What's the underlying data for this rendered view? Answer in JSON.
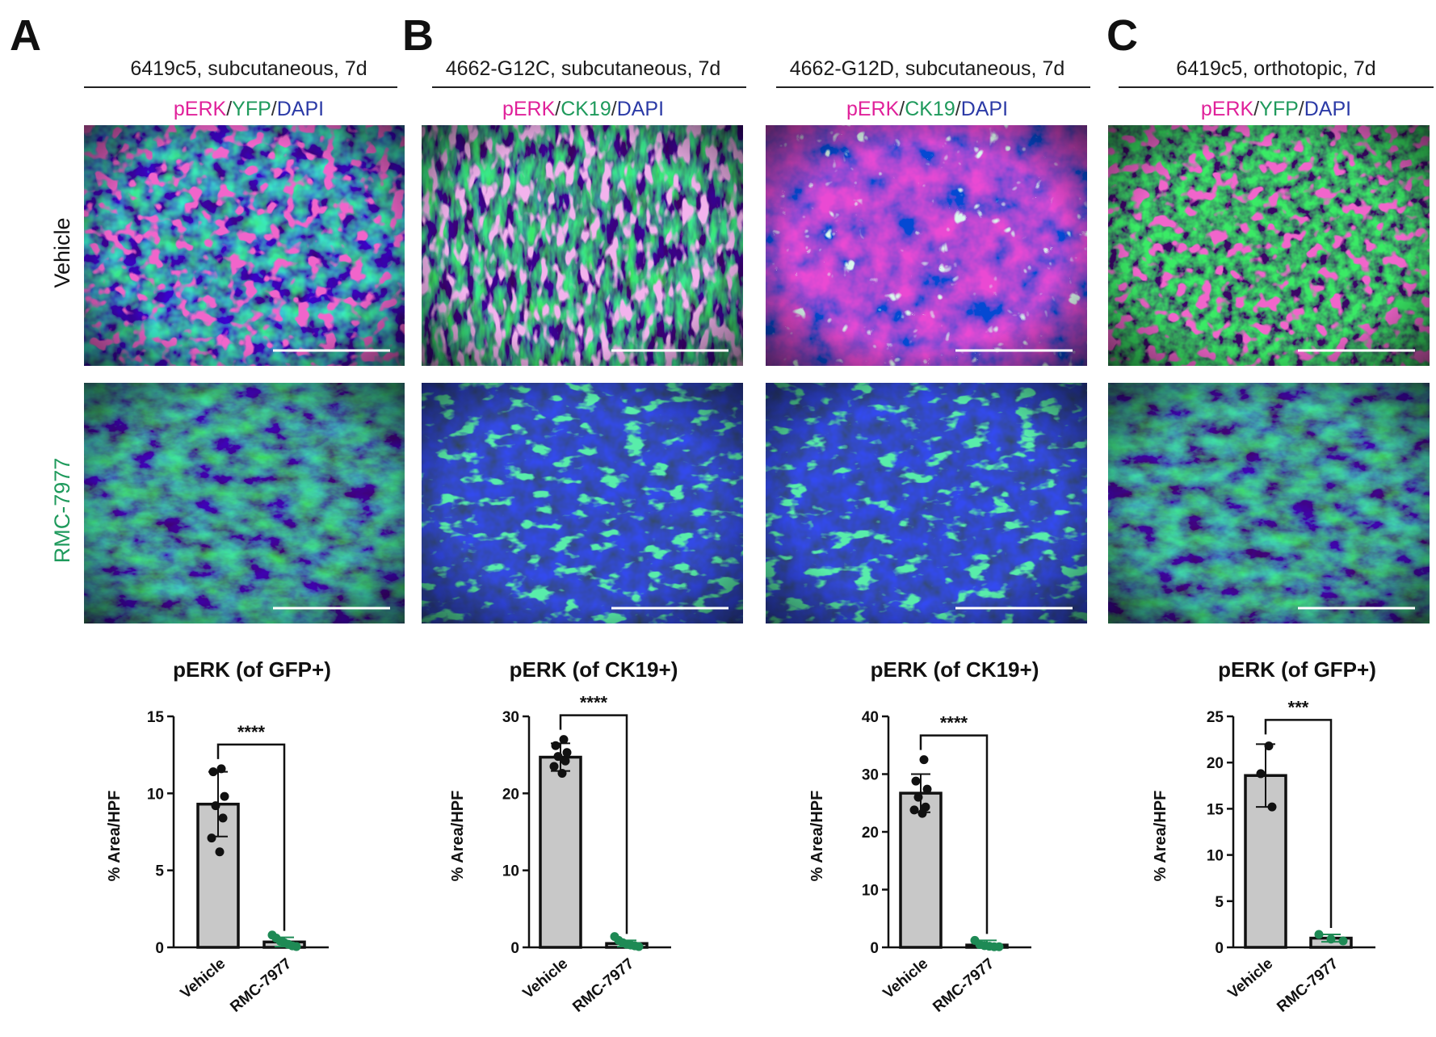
{
  "panels": [
    {
      "letter": "A"
    },
    {
      "letter": "B"
    },
    {
      "letter": "C"
    }
  ],
  "colors": {
    "magenta": "#e0219a",
    "green": "#1f9a5c",
    "blue": "#2b3aa6",
    "bar_fill": "#c8c8c8",
    "dot_vehicle": "#111111",
    "dot_rmc": "#1e8a55"
  },
  "conditions": [
    {
      "title": "6419c5, subcutaneous, 7d",
      "stain": [
        "pERK",
        "YFP",
        "DAPI"
      ],
      "style": "yfp"
    },
    {
      "title": "4662-G12C, subcutaneous, 7d",
      "stain": [
        "pERK",
        "CK19",
        "DAPI"
      ],
      "style": "ck19a"
    },
    {
      "title": "4662-G12D, subcutaneous, 7d",
      "stain": [
        "pERK",
        "CK19",
        "DAPI"
      ],
      "style": "ck19b"
    },
    {
      "title": "6419c5, orthotopic, 7d",
      "stain": [
        "pERK",
        "YFP",
        "DAPI"
      ],
      "style": "yfp2"
    }
  ],
  "stain_separator": "/",
  "row_labels": [
    "Vehicle",
    "RMC-7977"
  ],
  "chart_data": [
    {
      "type": "bar",
      "title": "pERK (of GFP+)",
      "ylabel": "% Area/HPF",
      "categories": [
        "Vehicle",
        "RMC-7977"
      ],
      "values": [
        9.3,
        0.35
      ],
      "error": [
        2.1,
        0.3
      ],
      "ylim": [
        0,
        15
      ],
      "yticks": [
        0,
        5,
        10,
        15
      ],
      "points": [
        [
          11.6,
          11.4,
          9.8,
          9.2,
          8.4,
          7.1,
          6.2
        ],
        [
          0.8,
          0.6,
          0.4,
          0.3,
          0.2,
          0.1,
          0.05
        ]
      ],
      "significance": "****"
    },
    {
      "type": "bar",
      "title": "pERK (of CK19+)",
      "ylabel": "% Area/HPF",
      "categories": [
        "Vehicle",
        "RMC-7977"
      ],
      "values": [
        24.7,
        0.5
      ],
      "error": [
        1.8,
        0.4
      ],
      "ylim": [
        0,
        30
      ],
      "yticks": [
        0,
        10,
        20,
        30
      ],
      "points": [
        [
          27.0,
          26.2,
          25.3,
          24.8,
          24.2,
          23.5,
          22.6
        ],
        [
          1.4,
          0.9,
          0.6,
          0.4,
          0.3,
          0.2,
          0.1
        ]
      ],
      "significance": "****"
    },
    {
      "type": "bar",
      "title": "pERK (of CK19+)",
      "ylabel": "% Area/HPF",
      "categories": [
        "Vehicle",
        "RMC-7977"
      ],
      "values": [
        26.7,
        0.4
      ],
      "error": [
        3.3,
        0.8
      ],
      "ylim": [
        0,
        40
      ],
      "yticks": [
        0,
        10,
        20,
        30,
        40
      ],
      "points": [
        [
          32.5,
          28.8,
          27.4,
          26.0,
          24.3,
          23.8,
          23.2
        ],
        [
          1.2,
          0.5,
          0.3,
          0.2,
          0.1,
          0.1
        ]
      ],
      "significance": "****"
    },
    {
      "type": "bar",
      "title": "pERK (of GFP+)",
      "ylabel": "% Area/HPF",
      "categories": [
        "Vehicle",
        "RMC-7977"
      ],
      "values": [
        18.6,
        1.0
      ],
      "error": [
        3.4,
        0.4
      ],
      "ylim": [
        0,
        25
      ],
      "yticks": [
        0,
        5,
        10,
        15,
        20,
        25
      ],
      "points": [
        [
          21.8,
          18.8,
          15.2
        ],
        [
          1.4,
          0.9,
          0.7
        ]
      ],
      "significance": "***"
    }
  ]
}
